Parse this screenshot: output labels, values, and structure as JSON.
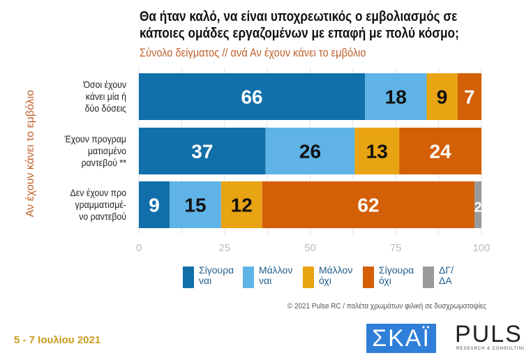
{
  "title_lines": [
    "Θα ήταν καλό, να είναι υποχρεωτικός ο εμβολιασμός σε",
    "κάποιες ομάδες εργαζομένων με επαφή με πολύ κόσμο;"
  ],
  "subtitle": "Σύνολο δείγματος // ανά Αν έχουν κάνει το εμβόλιο",
  "chart_data": {
    "type": "bar",
    "orientation": "horizontal",
    "stacked": true,
    "ylabel": "Αν έχουν κάνει το εμβόλιο",
    "categories": [
      "Όσοι έχουν κάνει μία ή δύο δόσεις",
      "Έχουν προγραμ ματισμένο ραντεβού **",
      "Δεν έχουν προ γραμματισμέ- νο ραντεβού"
    ],
    "category_lines": [
      [
        "Όσοι έχουν",
        "κάνει μία ή",
        "δύο δόσεις"
      ],
      [
        "Έχουν προγραμ",
        "ματισμένο",
        "ραντεβού **"
      ],
      [
        "Δεν έχουν προ",
        "γραμματισμέ-",
        "νο ραντεβού"
      ]
    ],
    "series": [
      {
        "name": "Σίγουρα ναι",
        "color": "#1170aa",
        "label_color": "#ffffff",
        "values": [
          66,
          37,
          9
        ]
      },
      {
        "name": "Μάλλον ναι",
        "color": "#5fb3e6",
        "label_color": "#111111",
        "values": [
          18,
          26,
          15
        ]
      },
      {
        "name": "Μάλλον όχι",
        "color": "#e8a412",
        "label_color": "#111111",
        "values": [
          9,
          13,
          12
        ]
      },
      {
        "name": "Σίγουρα όχι",
        "color": "#d35f06",
        "label_color": "#ffffff",
        "values": [
          7,
          24,
          62
        ]
      },
      {
        "name": "ΔΓ/ ΔΑ",
        "color": "#9a9a9a",
        "label_color": "#ffffff",
        "values": [
          0,
          0,
          2
        ]
      }
    ],
    "legend_lines": [
      [
        "Σίγουρα",
        "ναι"
      ],
      [
        "Μάλλον",
        "ναι"
      ],
      [
        "Μάλλον",
        "όχι"
      ],
      [
        "Σίγουρα",
        "όχι"
      ],
      [
        "ΔΓ/",
        "ΔΑ"
      ]
    ],
    "xlim": [
      0,
      100
    ],
    "xticks": [
      0,
      25,
      50,
      75,
      100
    ],
    "grid": true,
    "legend_position": "bottom"
  },
  "credit": "© 2021 Pulse RC  /  παλέτα χρωμάτων φιλική σε δυσχρωματοψίες",
  "date": "5 - 7  Ιουλίου  2021",
  "logos": {
    "skai": "ΣΚΑΪ",
    "pulse": "PULSE",
    "pulse_sub": "RESEARCH & CONSULTING"
  }
}
